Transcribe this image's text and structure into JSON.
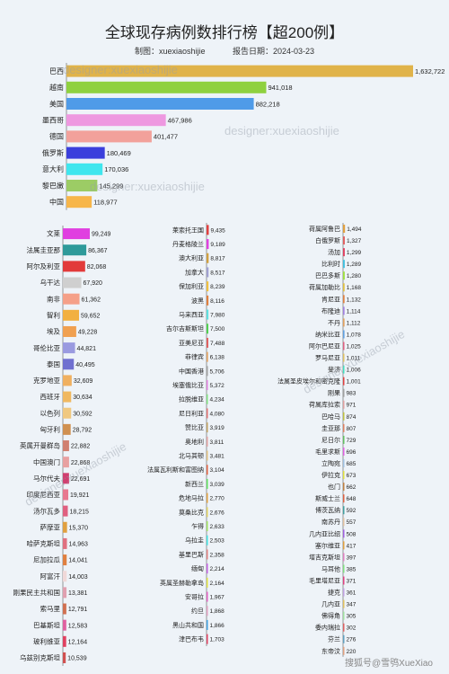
{
  "title": "全球现存病例数排行榜【超200例】",
  "subtitle": {
    "author": "制图：xuexiaoshijie",
    "date": "报告日期：2024-03-23"
  },
  "watermarks": [
    "designer:xuexiaoshijie",
    "designer:xuexiaoshijie",
    "designer:xuexiaoshijie",
    "designer:xuexiaoshijie",
    "designer:xuexiaoshijie"
  ],
  "footer": "搜狐号@雪鸮XueXiao",
  "chart_data": [
    {
      "type": "bar",
      "orientation": "horizontal",
      "categories": [
        "巴西",
        "越南",
        "美国",
        "墨西哥",
        "德国",
        "俄罗斯",
        "意大利",
        "黎巴嫩",
        "中国"
      ],
      "values": [
        1632722,
        941018,
        882218,
        467986,
        401477,
        180469,
        170036,
        145299,
        118977
      ],
      "value_labels": [
        "1,632,722",
        "941,018",
        "882,218",
        "467,986",
        "401,477",
        "180,469",
        "170,036",
        "145,299",
        "118,977"
      ],
      "colors": [
        "#e0b34a",
        "#8fd13f",
        "#4f9be8",
        "#ee98e0",
        "#f2a19b",
        "#3b3fdc",
        "#3fe6ee",
        "#9ccc65",
        "#f7b64a"
      ]
    },
    {
      "type": "bar",
      "orientation": "horizontal",
      "categories": [
        "文莱",
        "法属圭亚那",
        "阿尔及利亚",
        "乌干达",
        "南非",
        "智利",
        "埃及",
        "哥伦比亚",
        "泰国",
        "克罗地亚",
        "西班牙",
        "以色列",
        "匈牙利",
        "英属开曼群岛",
        "中国澳门",
        "马尔代夫",
        "印度尼西亚",
        "汤尔瓦多",
        "萨摩亚",
        "哈萨克斯坦",
        "尼加拉瓜",
        "阿富汗",
        "刚果民主共和国",
        "索马里",
        "巴基斯坦",
        "玻利维亚",
        "乌兹别克斯坦"
      ],
      "values": [
        99249,
        86367,
        82068,
        67920,
        61362,
        59652,
        49228,
        44821,
        40495,
        32609,
        30634,
        30592,
        28792,
        22882,
        22868,
        22691,
        19921,
        18215,
        15370,
        14963,
        14041,
        14003,
        13381,
        12791,
        12583,
        12164,
        10539
      ],
      "value_labels": [
        "99,249",
        "86,367",
        "82,068",
        "67,920",
        "61,362",
        "59,652",
        "49,228",
        "44,821",
        "40,495",
        "32,609",
        "30,634",
        "30,592",
        "28,792",
        "22,882",
        "22,868",
        "22,691",
        "19,921",
        "18,215",
        "15,370",
        "14,963",
        "14,041",
        "14,003",
        "13,381",
        "12,791",
        "12,583",
        "12,164",
        "10,539"
      ],
      "colors": [
        "#e03fe0",
        "#2e9a9a",
        "#e23a3a",
        "#cfcfcf",
        "#f5a088",
        "#f2b040",
        "#f0a050",
        "#9a9ae0",
        "#7070d0",
        "#f0b060",
        "#f0b860",
        "#f0c880",
        "#d09050",
        "#d08070",
        "#e8a0a0",
        "#d04070",
        "#e87890",
        "#e06080",
        "#e0a040",
        "#e07080",
        "#e08040",
        "#f0d8d8",
        "#e0a0b0",
        "#d07050",
        "#e060a0",
        "#e04060",
        "#d05050"
      ]
    },
    {
      "type": "bar",
      "orientation": "horizontal",
      "categories": [
        "莱索托王国",
        "丹麦格陵兰",
        "澳大利亚",
        "加拿大",
        "保加利亚",
        "波黑",
        "马来西亚",
        "吉尔吉斯斯坦",
        "亚美尼亚",
        "菲律宾",
        "中国香港",
        "埃塞俄比亚",
        "拉脱维亚",
        "尼日利亚",
        "赞比亚",
        "奥地利",
        "北马其顿",
        "法属瓦利斯和富图纳",
        "新西兰",
        "危地马拉",
        "莫桑比克",
        "乍得",
        "乌拉圭",
        "基里巴斯",
        "缅甸",
        "英属圣赫勒拿岛",
        "安哥拉",
        "约旦",
        "黑山共和国",
        "津巴布韦"
      ],
      "values": [
        9435,
        9189,
        8817,
        8517,
        8239,
        8116,
        7980,
        7500,
        7488,
        6138,
        5706,
        5372,
        4234,
        4080,
        3919,
        3811,
        3481,
        3104,
        3039,
        2770,
        2676,
        2633,
        2503,
        2358,
        2214,
        2164,
        1967,
        1868,
        1866,
        1703
      ],
      "value_labels": [
        "9,435",
        "9,189",
        "8,817",
        "8,517",
        "8,239",
        "8,116",
        "7,980",
        "7,500",
        "7,488",
        "6,138",
        "5,706",
        "5,372",
        "4,234",
        "4,080",
        "3,919",
        "3,811",
        "3,481",
        "3,104",
        "3,039",
        "2,770",
        "2,676",
        "2,633",
        "2,503",
        "2,358",
        "2,214",
        "2,164",
        "1,967",
        "1,868",
        "1,866",
        "1,703"
      ],
      "colors": [
        "#e04040",
        "#e040e0",
        "#d0a040",
        "#a0a0d0",
        "#f0c040",
        "#e08040",
        "#60e0e0",
        "#50d050",
        "#e06060",
        "#e0a060",
        "#a0a0a0",
        "#e080e0",
        "#80e080",
        "#e07070",
        "#c0a060",
        "#e0a0a0",
        "#e0c080",
        "#e06040",
        "#60e060",
        "#e0a040",
        "#e0d060",
        "#a0e060",
        "#40e0e0",
        "#e08080",
        "#c060e0",
        "#e0e040",
        "#e060c0",
        "#e0a0c0",
        "#40a0e0",
        "#e04060"
      ]
    },
    {
      "type": "bar",
      "orientation": "horizontal",
      "categories": [
        "荷属阿鲁巴",
        "白俄罗斯",
        "汤加",
        "比利时",
        "巴巴多斯",
        "荷属加勒比",
        "肯尼亚",
        "布隆迪",
        "不丹",
        "纳米比亚",
        "阿尔巴尼亚",
        "罗马尼亚",
        "斐济",
        "法属圣皮埃尔和密克隆",
        "刚果",
        "荷属库拉索",
        "巴哈马",
        "圭亚那",
        "尼日尔",
        "毛里求斯",
        "立陶宛",
        "伊拉克",
        "也门",
        "斯威士兰",
        "博茨瓦纳",
        "南苏丹",
        "几内亚比绍",
        "塞尔维亚",
        "塔吉克斯坦",
        "马耳他",
        "毛里塔尼亚",
        "捷克",
        "几内亚",
        "佛得角",
        "委内瑞拉",
        "芬兰",
        "东帝汶"
      ],
      "values": [
        1494,
        1327,
        1299,
        1289,
        1280,
        1168,
        1132,
        1114,
        1112,
        1078,
        1025,
        1011,
        1006,
        1001,
        983,
        971,
        874,
        807,
        729,
        696,
        685,
        673,
        662,
        648,
        592,
        557,
        508,
        417,
        397,
        385,
        371,
        361,
        347,
        305,
        302,
        276,
        220
      ],
      "value_labels": [
        "1,494",
        "1,327",
        "1,299",
        "1,289",
        "1,280",
        "1,168",
        "1,132",
        "1,114",
        "1,112",
        "1,078",
        "1,025",
        "1,011",
        "1,006",
        "1,001",
        "983",
        "971",
        "874",
        "807",
        "729",
        "696",
        "685",
        "673",
        "662",
        "648",
        "592",
        "557",
        "508",
        "417",
        "397",
        "385",
        "371",
        "361",
        "347",
        "305",
        "302",
        "276",
        "220"
      ],
      "colors": [
        "#e0a040",
        "#e06060",
        "#e04060",
        "#40c0e0",
        "#a0e040",
        "#e0c040",
        "#e08040",
        "#a080e0",
        "#e0a060",
        "#60a0e0",
        "#e06080",
        "#e0c060",
        "#40e0c0",
        "#e04040",
        "#a0a0a0",
        "#e0a0a0",
        "#c0c040",
        "#e08060",
        "#60c060",
        "#e060e0",
        "#a0c0e0",
        "#e0e040",
        "#c08040",
        "#e06040",
        "#40a0a0",
        "#e0c0a0",
        "#a060e0",
        "#e0a040",
        "#e080c0",
        "#80e080",
        "#e04080",
        "#c0a0e0",
        "#e0c060",
        "#a0e0a0",
        "#e06060",
        "#60a0c0",
        "#e0a080"
      ]
    }
  ]
}
